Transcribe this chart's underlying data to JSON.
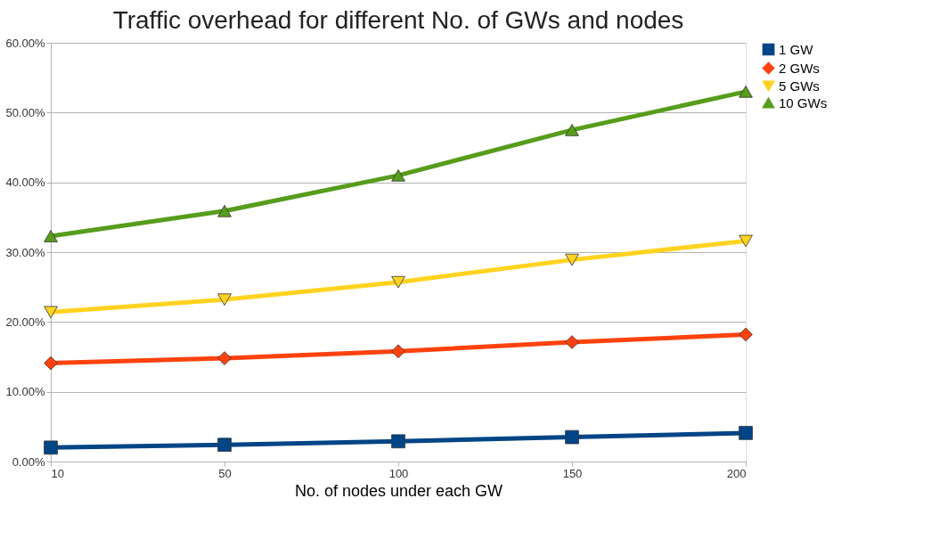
{
  "chart_data": {
    "type": "line",
    "title": "Traffic overhead for different No. of GWs and nodes",
    "xlabel": "No. of nodes under each GW",
    "categories": [
      "10",
      "50",
      "100",
      "150",
      "200"
    ],
    "series": [
      {
        "name": "1 GW",
        "color": "#004586",
        "marker": "square",
        "values": [
          2.0,
          2.4,
          2.9,
          3.5,
          4.1
        ]
      },
      {
        "name": "2 GWs",
        "color": "#ff420e",
        "marker": "diamond",
        "values": [
          14.1,
          14.8,
          15.8,
          17.1,
          18.2
        ]
      },
      {
        "name": "5 GWs",
        "color": "#ffd320",
        "marker": "triangle-down",
        "values": [
          21.4,
          23.2,
          25.7,
          28.9,
          31.6
        ]
      },
      {
        "name": "10 GWs",
        "color": "#579d1c",
        "marker": "triangle",
        "values": [
          32.3,
          35.9,
          41.0,
          47.5,
          53.0
        ]
      }
    ],
    "ylim": [
      0,
      60
    ],
    "yticks": [
      {
        "value": 0,
        "label": "0.00%"
      },
      {
        "value": 10,
        "label": "10.00%"
      },
      {
        "value": 20,
        "label": "20.00%"
      },
      {
        "value": 30,
        "label": "30.00%"
      },
      {
        "value": 40,
        "label": "40.00%"
      },
      {
        "value": 50,
        "label": "50.00%"
      },
      {
        "value": 60,
        "label": "60.00%"
      }
    ],
    "grid": "y",
    "legend": "right",
    "line_style": "solid"
  }
}
